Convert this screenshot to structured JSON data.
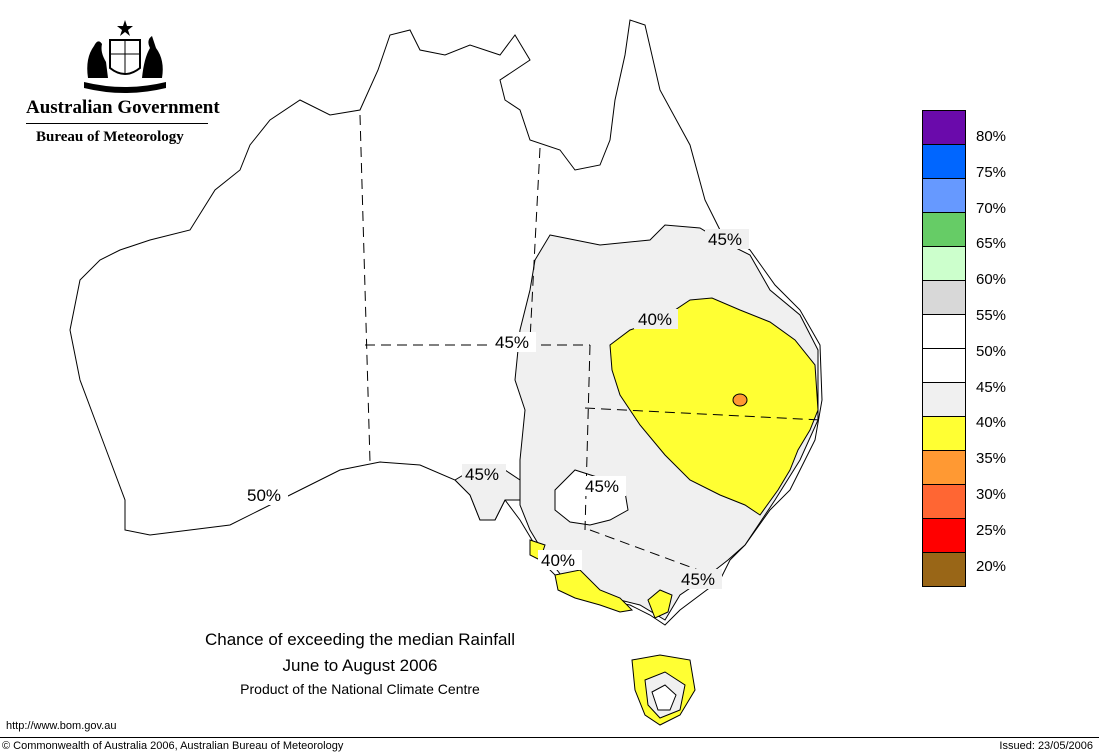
{
  "header": {
    "government": "Australian Government",
    "bureau": "Bureau of Meteorology"
  },
  "title": {
    "line1": "Chance of exceeding the median Rainfall",
    "line2": "June to August 2006",
    "line3": "Product of the National Climate Centre"
  },
  "footer": {
    "url": "http://www.bom.gov.au",
    "copyright": "© Commonwealth of Australia 2006, Australian Bureau of Meteorology",
    "issued": "Issued: 23/05/2006"
  },
  "legend": {
    "swatches": [
      {
        "color": "#6a0aab"
      },
      {
        "color": "#0066ff"
      },
      {
        "color": "#6699ff"
      },
      {
        "color": "#66cc66"
      },
      {
        "color": "#ccffcc"
      },
      {
        "color": "#d8d8d8"
      },
      {
        "color": "#ffffff"
      },
      {
        "color": "#ffffff"
      },
      {
        "color": "#f0f0f0"
      },
      {
        "color": "#ffff33"
      },
      {
        "color": "#ff9933"
      },
      {
        "color": "#ff6633"
      },
      {
        "color": "#ff0000"
      },
      {
        "color": "#996617"
      }
    ],
    "labels": [
      "80%",
      "75%",
      "70%",
      "65%",
      "60%",
      "55%",
      "50%",
      "45%",
      "40%",
      "35%",
      "30%",
      "25%",
      "20%"
    ]
  },
  "contour_labels": [
    {
      "text": "45%"
    },
    {
      "text": "40%"
    },
    {
      "text": "45%"
    },
    {
      "text": "45%"
    },
    {
      "text": "45%"
    },
    {
      "text": "50%"
    },
    {
      "text": "40%"
    },
    {
      "text": "45%"
    }
  ]
}
